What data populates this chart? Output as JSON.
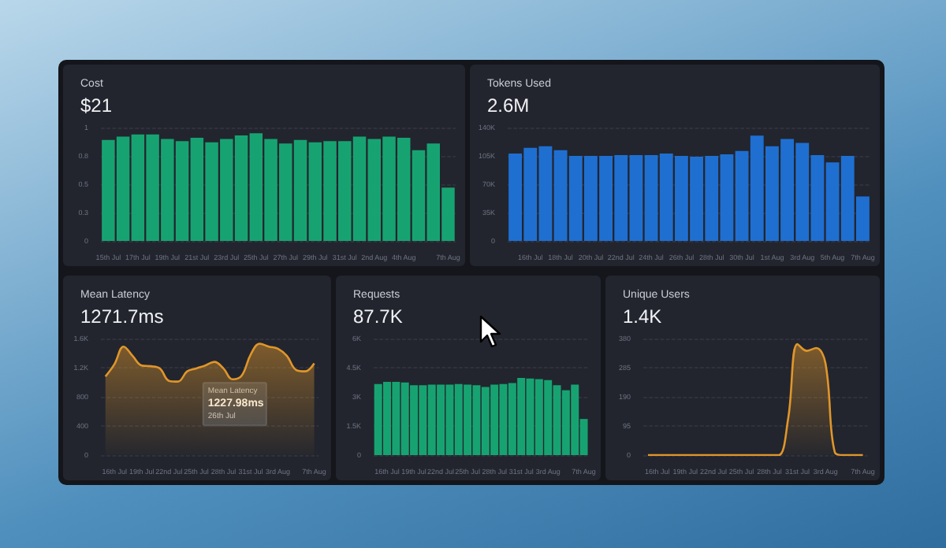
{
  "chart_data": [
    {
      "type": "bar",
      "title": "Cost",
      "subtitle": "$21",
      "categories": [
        "15th Jul",
        null,
        "17th Jul",
        null,
        "19th Jul",
        null,
        "21st Jul",
        null,
        "23rd Jul",
        null,
        "25th Jul",
        null,
        "27th Jul",
        null,
        "29th Jul",
        null,
        "31st Jul",
        null,
        "2nd Aug",
        null,
        "4th Aug",
        null,
        null,
        "7th Aug"
      ],
      "series": [
        {
          "color": "#17a371",
          "values": [
            0.89,
            0.92,
            0.94,
            0.94,
            0.9,
            0.88,
            0.91,
            0.87,
            0.9,
            0.93,
            0.95,
            0.9,
            0.86,
            0.89,
            0.87,
            0.88,
            0.88,
            0.92,
            0.9,
            0.92,
            0.91,
            0.8,
            0.86,
            0.47
          ]
        }
      ],
      "ylim": [
        0,
        1
      ],
      "yticks": [
        0,
        {
          "value": 0.25,
          "label": "0.3"
        },
        {
          "value": 0.5,
          "label": "0.5"
        },
        {
          "value": 0.75,
          "label": "0.8"
        },
        1
      ],
      "grid": "y"
    },
    {
      "type": "bar",
      "title": "Tokens Used",
      "subtitle": "2.6M",
      "categories": [
        null,
        "16th Jul",
        null,
        "18th Jul",
        null,
        "20th Jul",
        null,
        "22nd Jul",
        null,
        "24th Jul",
        null,
        "26th Jul",
        null,
        "28th Jul",
        null,
        "30th Jul",
        null,
        "1st Aug",
        null,
        "3rd Aug",
        null,
        "5th Aug",
        null,
        "7th Aug"
      ],
      "series": [
        {
          "color": "#1f6fd1",
          "values": [
            108000,
            115000,
            117000,
            112000,
            105000,
            105000,
            105000,
            106000,
            106000,
            106000,
            108000,
            105000,
            104000,
            105000,
            107000,
            111000,
            130000,
            117000,
            126000,
            121000,
            106000,
            97000,
            105000,
            55000
          ]
        }
      ],
      "ylim": [
        0,
        140000
      ],
      "yticks": [
        0,
        {
          "value": 35000,
          "label": "35K"
        },
        {
          "value": 70000,
          "label": "70K"
        },
        {
          "value": 105000,
          "label": "105K"
        },
        {
          "value": 140000,
          "label": "140K"
        }
      ],
      "grid": "y"
    },
    {
      "type": "area",
      "title": "Mean Latency",
      "subtitle": "1271.7ms",
      "categories": [
        null,
        "16th Jul",
        null,
        null,
        "19th Jul",
        null,
        null,
        "22nd Jul",
        null,
        null,
        "25th Jul",
        null,
        null,
        "28th Jul",
        null,
        null,
        "31st Jul",
        null,
        null,
        "3rd Aug",
        null,
        null,
        null,
        "7th Aug"
      ],
      "series": [
        {
          "color": "#e0962a",
          "values": [
            1080,
            1250,
            1490,
            1360,
            1230,
            1220,
            1190,
            1020,
            1010,
            1150,
            1190,
            1230,
            1280,
            1190,
            1040,
            1090,
            1380,
            1530,
            1490,
            1460,
            1360,
            1170,
            1150,
            1260
          ]
        }
      ],
      "ylim": [
        0,
        1600
      ],
      "yticks": [
        0,
        400,
        800,
        {
          "value": 1200,
          "label": "1.2K"
        },
        {
          "value": 1600,
          "label": "1.6K"
        }
      ],
      "grid": "y",
      "marker": "none",
      "annotations": [
        "Mean Latency\n1227.98ms\n26th Jul"
      ]
    },
    {
      "type": "bar",
      "title": "Requests",
      "subtitle": "87.7K",
      "categories": [
        null,
        "16th Jul",
        null,
        null,
        "19th Jul",
        null,
        null,
        "22nd Jul",
        null,
        null,
        "25th Jul",
        null,
        null,
        "28th Jul",
        null,
        null,
        "31st Jul",
        null,
        null,
        "3rd Aug",
        null,
        null,
        null,
        "7th Aug"
      ],
      "series": [
        {
          "color": "#17a371",
          "values": [
            3660,
            3770,
            3770,
            3740,
            3600,
            3600,
            3630,
            3630,
            3630,
            3660,
            3630,
            3600,
            3510,
            3630,
            3660,
            3710,
            3970,
            3940,
            3910,
            3860,
            3600,
            3340,
            3630,
            1860
          ]
        }
      ],
      "ylim": [
        0,
        6000
      ],
      "yticks": [
        0,
        {
          "value": 1500,
          "label": "1.5K"
        },
        {
          "value": 3000,
          "label": "3K"
        },
        {
          "value": 4500,
          "label": "4.5K"
        },
        {
          "value": 6000,
          "label": "6K"
        }
      ],
      "grid": "y"
    },
    {
      "type": "area",
      "title": "Unique Users",
      "subtitle": "1.4K",
      "categories": [
        null,
        "16th Jul",
        null,
        null,
        "19th Jul",
        null,
        null,
        "22nd Jul",
        null,
        null,
        "25th Jul",
        null,
        null,
        "28th Jul",
        null,
        null,
        "31st Jul",
        null,
        null,
        "3rd Aug",
        null,
        null,
        null,
        "7th Aug"
      ],
      "series": [
        {
          "color": "#e0962a",
          "values": [
            0,
            0,
            0,
            0,
            0,
            0,
            0,
            0,
            0,
            0,
            0,
            0,
            0,
            0,
            0,
            118,
            362,
            340,
            349,
            299,
            9,
            0,
            0,
            0
          ]
        }
      ],
      "ylim": [
        0,
        380
      ],
      "yticks": [
        0,
        95,
        190,
        285,
        380
      ],
      "grid": "y",
      "marker": "none"
    }
  ]
}
